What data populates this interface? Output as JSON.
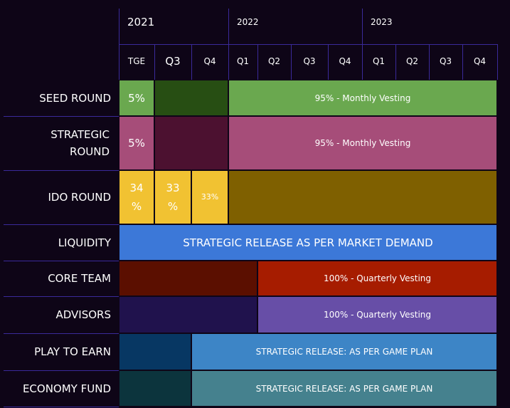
{
  "header": {
    "years": [
      "2021",
      "2022",
      "2023"
    ],
    "quarters": [
      "TGE",
      "Q3",
      "Q4",
      "Q1",
      "Q2",
      "Q3",
      "Q4",
      "Q1",
      "Q2",
      "Q3",
      "Q4"
    ]
  },
  "rows": [
    {
      "label": "SEED ROUND",
      "segments": [
        {
          "text": "5%",
          "color": "#6aa84f"
        },
        {
          "text": "",
          "color": "#274e13"
        },
        {
          "text": "95% - Monthly Vesting",
          "color": "#6aa84f"
        }
      ]
    },
    {
      "label": "STRATEGIC ROUND",
      "segments": [
        {
          "text": "5%",
          "color": "#a64d79"
        },
        {
          "text": "",
          "color": "#4c1130"
        },
        {
          "text": "95% - Monthly Vesting",
          "color": "#a64d79"
        }
      ]
    },
    {
      "label": "IDO ROUND",
      "segments": [
        {
          "text": "34 %",
          "color": "#f1c232"
        },
        {
          "text": "33 %",
          "color": "#f1c232"
        },
        {
          "text": "33%",
          "color": "#f1c232"
        },
        {
          "text": "",
          "color": "#7f6000"
        }
      ]
    },
    {
      "label": "LIQUIDITY",
      "segments": [
        {
          "text": "STRATEGIC RELEASE AS PER MARKET DEMAND",
          "color": "#3c78d8"
        }
      ]
    },
    {
      "label": "CORE TEAM",
      "segments": [
        {
          "text": "",
          "color": "#5b0f00"
        },
        {
          "text": "100% - Quarterly Vesting",
          "color": "#a61c00"
        }
      ]
    },
    {
      "label": "ADVISORS",
      "segments": [
        {
          "text": "",
          "color": "#20124d"
        },
        {
          "text": "100% - Quarterly Vesting",
          "color": "#674ea7"
        }
      ]
    },
    {
      "label": "PLAY TO EARN",
      "segments": [
        {
          "text": "",
          "color": "#073763"
        },
        {
          "text": "STRATEGIC RELEASE: AS PER GAME PLAN",
          "color": "#3d85c6"
        }
      ]
    },
    {
      "label": "ECONOMY FUND",
      "segments": [
        {
          "text": "",
          "color": "#0c343d"
        },
        {
          "text": "STRATEGIC RELEASE: AS PER GAME PLAN",
          "color": "#45818e"
        }
      ]
    }
  ]
}
